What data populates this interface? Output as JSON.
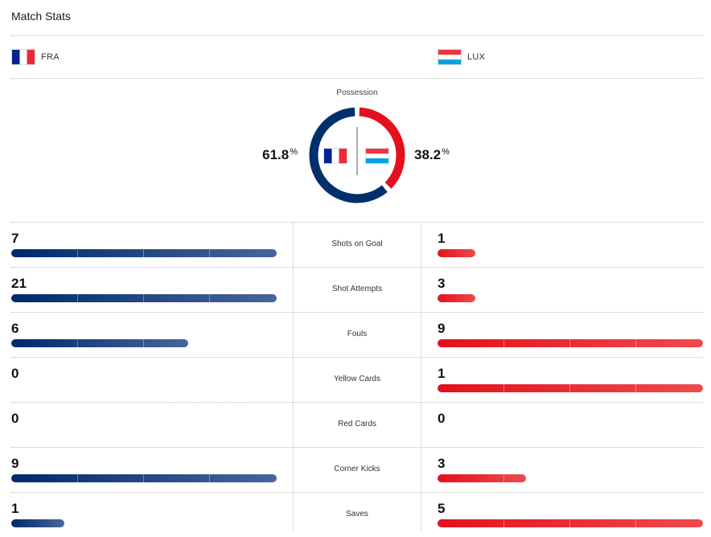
{
  "title": "Match Stats",
  "home": {
    "abbr": "FRA",
    "possession": "61.8",
    "possession_value": 61.8,
    "color": "#002f6c"
  },
  "away": {
    "abbr": "LUX",
    "possession": "38.2",
    "possession_value": 38.2,
    "color": "#e4101c"
  },
  "possession": {
    "label": "Possession",
    "unit": "%"
  },
  "stats": [
    {
      "label": "Shots on Goal",
      "home": "7",
      "away": "1",
      "home_fill": 1.0,
      "away_fill": 0.143
    },
    {
      "label": "Shot Attempts",
      "home": "21",
      "away": "3",
      "home_fill": 1.0,
      "away_fill": 0.143
    },
    {
      "label": "Fouls",
      "home": "6",
      "away": "9",
      "home_fill": 0.667,
      "away_fill": 1.0
    },
    {
      "label": "Yellow Cards",
      "home": "0",
      "away": "1",
      "home_fill": 0,
      "away_fill": 1.0
    },
    {
      "label": "Red Cards",
      "home": "0",
      "away": "0",
      "home_fill": 0,
      "away_fill": 0
    },
    {
      "label": "Corner Kicks",
      "home": "9",
      "away": "3",
      "home_fill": 1.0,
      "away_fill": 0.333
    },
    {
      "label": "Saves",
      "home": "1",
      "away": "5",
      "home_fill": 0.2,
      "away_fill": 1.0
    }
  ]
}
